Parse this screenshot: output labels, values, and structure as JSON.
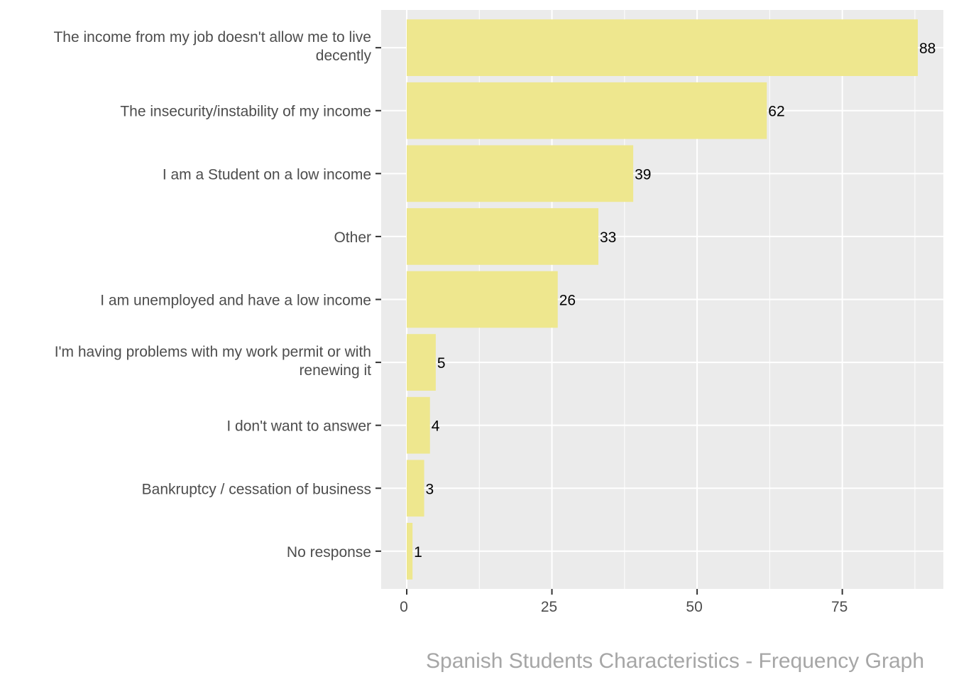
{
  "chart_data": {
    "type": "bar",
    "orientation": "horizontal",
    "categories": [
      [
        "The income from my job doesn't allow me to live",
        "decently"
      ],
      [
        "The insecurity/instability of my income"
      ],
      [
        "I am a Student on a low income"
      ],
      [
        "Other"
      ],
      [
        "I am unemployed and have a low income"
      ],
      [
        "I'm having problems with my work permit or with",
        "renewing it"
      ],
      [
        "I don't want to answer"
      ],
      [
        "Bankruptcy / cessation of business"
      ],
      [
        "No response"
      ]
    ],
    "values": [
      88,
      62,
      39,
      33,
      26,
      5,
      4,
      3,
      1
    ],
    "value_labels": [
      "88",
      "62",
      "39",
      "33",
      "26",
      "5",
      "4",
      "3",
      "1"
    ],
    "xlim": [
      -4.4,
      92.4
    ],
    "xticks": [
      0,
      25,
      50,
      75
    ],
    "xtick_labels": [
      "0",
      "25",
      "50",
      "75"
    ],
    "caption": "Spanish Students Characteristics - Frequency Graph",
    "xlabel": "",
    "ylabel": "",
    "grid": true,
    "bar_color": "#eee78e",
    "panel_color": "#ebebeb",
    "grid_color": "#ffffff"
  }
}
